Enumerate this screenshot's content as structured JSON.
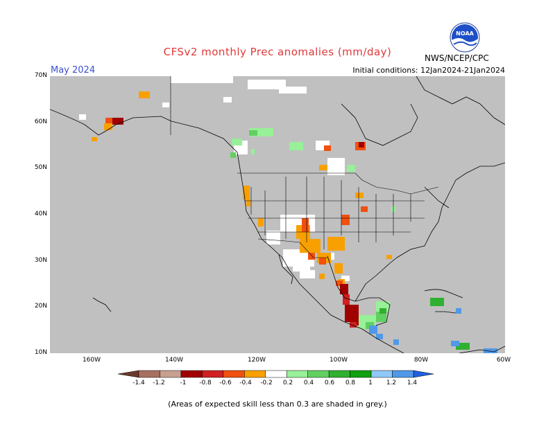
{
  "title": "CFSv2 monthly Prec anomalies (mm/day)",
  "month": "May 2024",
  "initial_conditions": "Initial conditions: 12Jan2024-21Jan2024",
  "agency": "NWS/NCEP/CPC",
  "logo_text": "NOAA",
  "footnote": "(Areas of expected skill less than 0.3 are shaded in grey.)",
  "colors": {
    "skill_grey": "#c0c0c0",
    "ocean_grey": "#c0c0c0",
    "border": "#000000"
  },
  "axes": {
    "lat_labels": [
      "70N",
      "60N",
      "50N",
      "40N",
      "30N",
      "20N",
      "10N"
    ],
    "lon_labels": [
      "160W",
      "140W",
      "120W",
      "100W",
      "80W",
      "60W"
    ]
  },
  "colorbar": {
    "labels": [
      "-1.4",
      "-1.2",
      "-1",
      "-0.8",
      "-0.6",
      "-0.4",
      "-0.2",
      "0.2",
      "0.4",
      "0.6",
      "0.8",
      "1",
      "1.2",
      "1.4"
    ],
    "colors": [
      "#7a4a3a",
      "#a87060",
      "#c8a090",
      "#a00000",
      "#d02020",
      "#f05010",
      "#f8a000",
      "#ffffff",
      "#98f098",
      "#60d060",
      "#30b030",
      "#10a010",
      "#90c8f8",
      "#5098e8",
      "#2060e0"
    ]
  }
}
